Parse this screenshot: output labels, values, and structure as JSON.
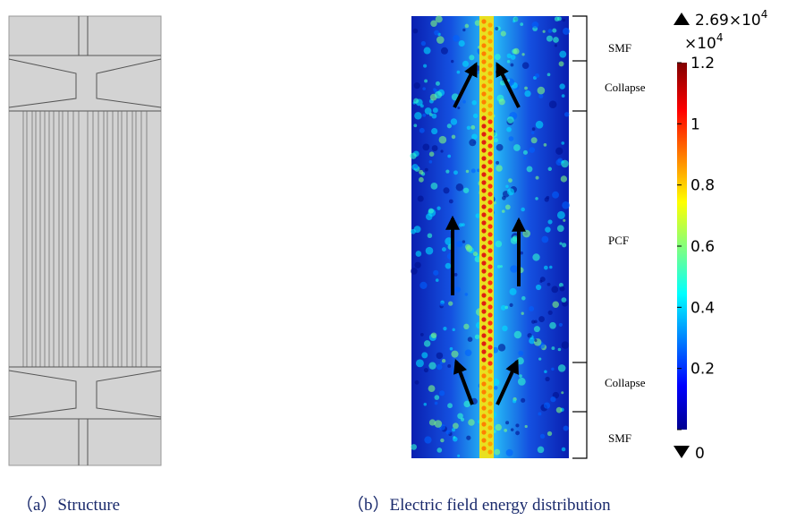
{
  "panels": [
    {
      "caption": "（a）Structure"
    },
    {
      "caption": "（b）Electric field energy distribution"
    }
  ],
  "regions": [
    {
      "label": "SMF"
    },
    {
      "label": "Collapse"
    },
    {
      "label": "PCF"
    },
    {
      "label": "Collapse"
    },
    {
      "label": "SMF"
    }
  ],
  "colorbar": {
    "max_label": "2.69×10",
    "max_exponent": "4",
    "multiplier": "×10",
    "multiplier_exponent": "4",
    "min_label": "0",
    "range": [
      0,
      1.2
    ],
    "ticks": [
      1.2,
      1,
      0.8,
      0.6,
      0.4,
      0.2,
      0
    ]
  }
}
